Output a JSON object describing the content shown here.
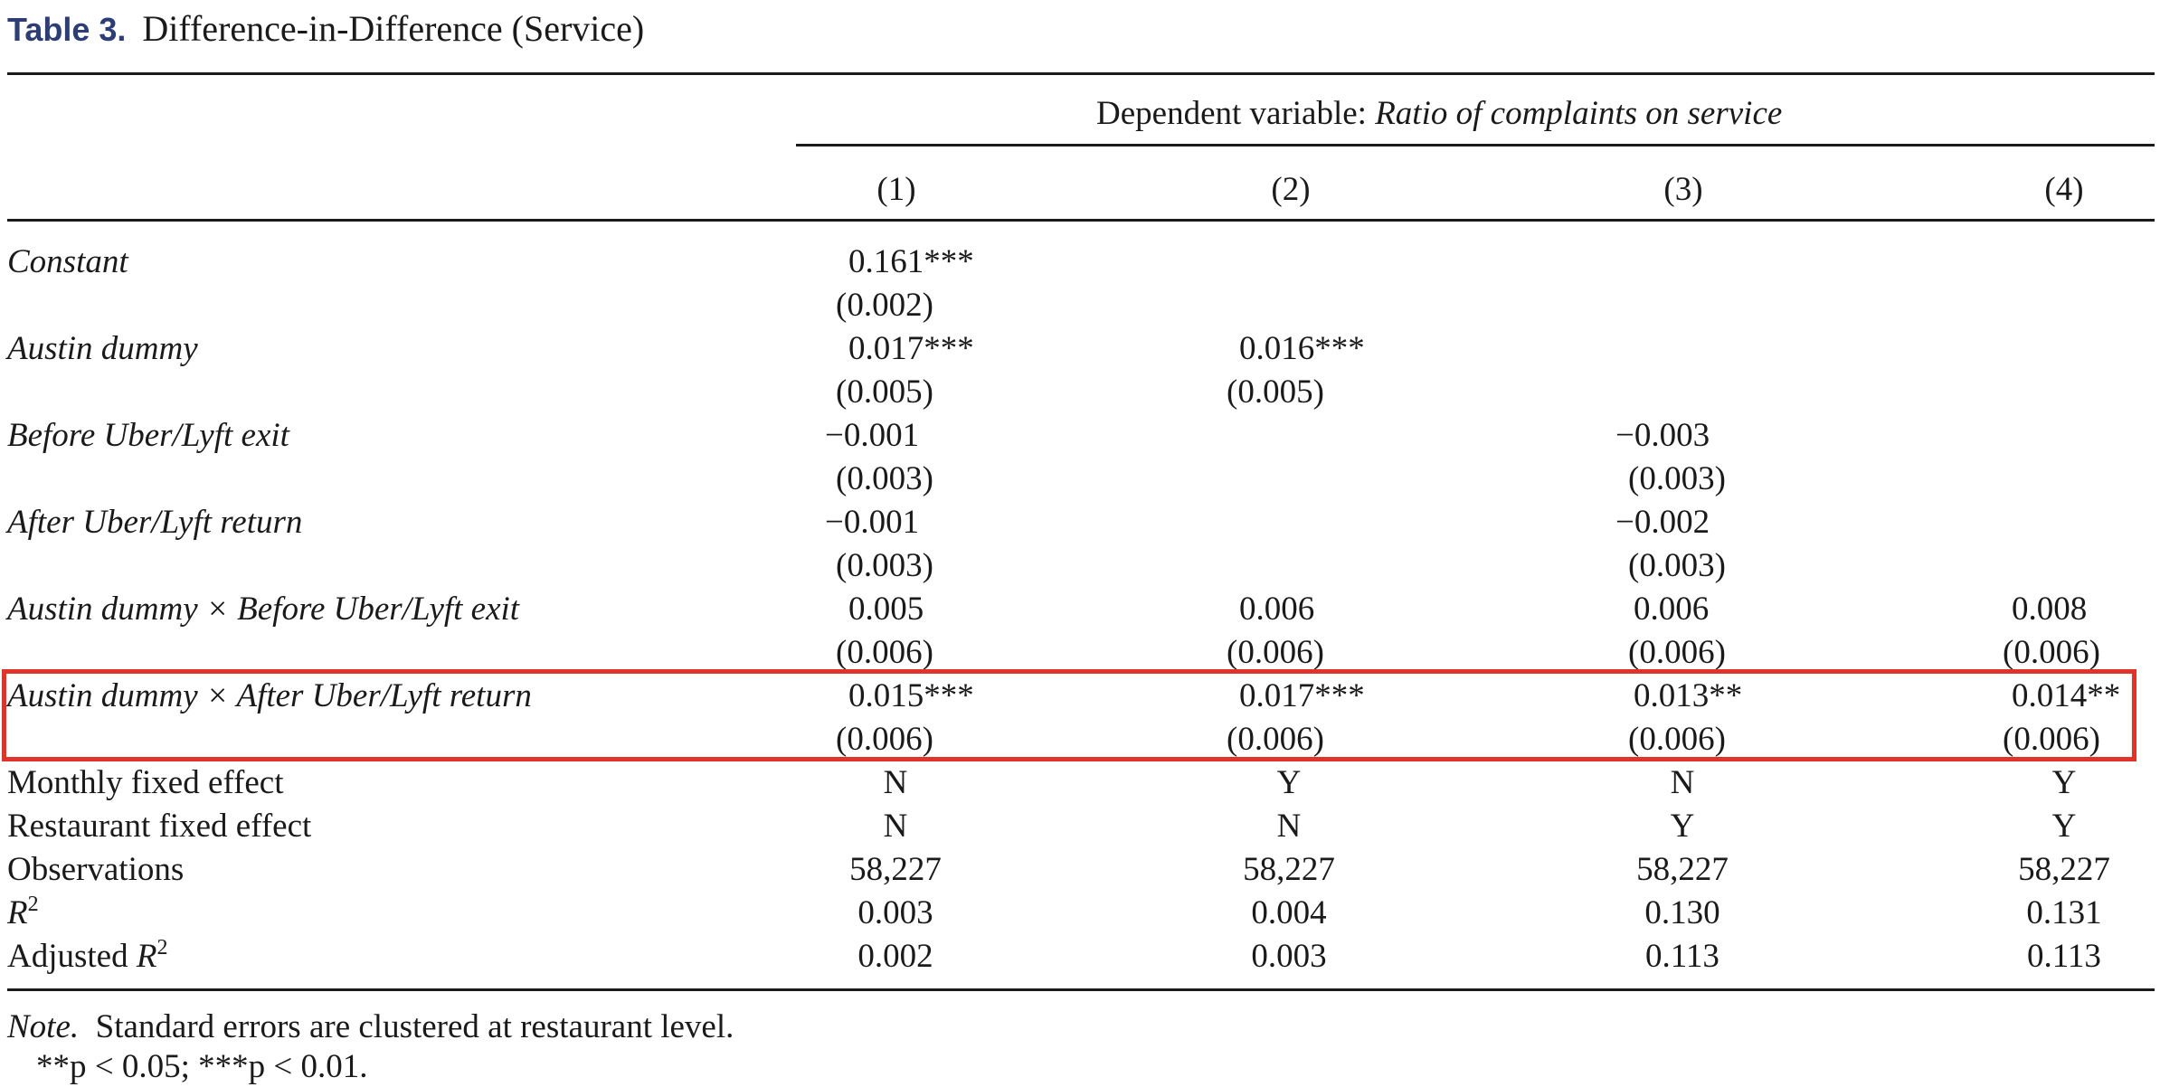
{
  "title": {
    "label": "Table 3.",
    "text": "Difference-in-Difference (Service)"
  },
  "header": {
    "dependent_prefix": "Dependent variable: ",
    "dependent_name": "Ratio of complaints on service",
    "columns": [
      "(1)",
      "(2)",
      "(3)",
      "(4)"
    ]
  },
  "coefficient_rows": [
    {
      "label": "Constant",
      "values": [
        {
          "coef": "0.161***",
          "se": "(0.002)"
        },
        {
          "coef": "",
          "se": ""
        },
        {
          "coef": "",
          "se": ""
        },
        {
          "coef": "",
          "se": ""
        }
      ]
    },
    {
      "label": "Austin dummy",
      "values": [
        {
          "coef": "0.017***",
          "se": "(0.005)"
        },
        {
          "coef": "0.016***",
          "se": "(0.005)"
        },
        {
          "coef": "",
          "se": ""
        },
        {
          "coef": "",
          "se": ""
        }
      ]
    },
    {
      "label": "Before Uber/Lyft exit",
      "values": [
        {
          "coef": "−0.001",
          "se": "(0.003)"
        },
        {
          "coef": "",
          "se": ""
        },
        {
          "coef": "−0.003",
          "se": "(0.003)"
        },
        {
          "coef": "",
          "se": ""
        }
      ]
    },
    {
      "label": "After Uber/Lyft return",
      "values": [
        {
          "coef": "−0.001",
          "se": "(0.003)"
        },
        {
          "coef": "",
          "se": ""
        },
        {
          "coef": "−0.002",
          "se": "(0.003)"
        },
        {
          "coef": "",
          "se": ""
        }
      ]
    },
    {
      "label": "Austin dummy × Before Uber/Lyft exit",
      "values": [
        {
          "coef": "0.005",
          "se": "(0.006)"
        },
        {
          "coef": "0.006",
          "se": "(0.006)"
        },
        {
          "coef": "0.006",
          "se": "(0.006)"
        },
        {
          "coef": "0.008",
          "se": "(0.006)"
        }
      ]
    },
    {
      "label": "Austin dummy × After Uber/Lyft return",
      "values": [
        {
          "coef": "0.015***",
          "se": "(0.006)"
        },
        {
          "coef": "0.017***",
          "se": "(0.006)"
        },
        {
          "coef": "0.013**",
          "se": "(0.006)"
        },
        {
          "coef": "0.014**",
          "se": "(0.006)"
        }
      ]
    }
  ],
  "stat_rows": [
    {
      "label": "Monthly fixed effect",
      "values": [
        "N",
        "Y",
        "N",
        "Y"
      ]
    },
    {
      "label": "Restaurant fixed effect",
      "values": [
        "N",
        "N",
        "Y",
        "Y"
      ]
    },
    {
      "label": "Observations",
      "values": [
        "58,227",
        "58,227",
        "58,227",
        "58,227"
      ]
    },
    {
      "label": "R",
      "sup": "2",
      "values": [
        "0.003",
        "0.004",
        "0.130",
        "0.131"
      ]
    },
    {
      "label": "Adjusted R",
      "sup": "2",
      "values": [
        "0.002",
        "0.003",
        "0.113",
        "0.113"
      ]
    }
  ],
  "note": {
    "prefix": "Note.",
    "text": "Standard errors are clustered at restaurant level.",
    "significance": "**p < 0.05; ***p < 0.01."
  },
  "highlight_color": "#e0342a"
}
